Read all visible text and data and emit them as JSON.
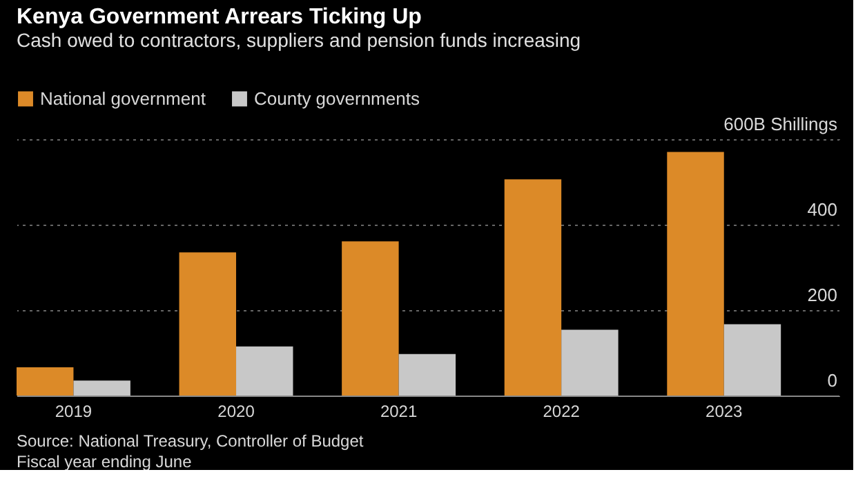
{
  "chart_data": {
    "type": "bar",
    "title": "Kenya Government Arrears Ticking Up",
    "subtitle": "Cash owed to contractors, suppliers and pension funds increasing",
    "categories": [
      "2019",
      "2020",
      "2021",
      "2022",
      "2023"
    ],
    "series": [
      {
        "name": "National government",
        "color": "#dc8a28",
        "values": [
          66,
          335,
          361,
          506,
          570
        ]
      },
      {
        "name": "County governments",
        "color": "#c8c8c8",
        "values": [
          35,
          115,
          97,
          154,
          167
        ]
      }
    ],
    "ylim": [
      0,
      600
    ],
    "yticks": [
      0,
      200,
      400,
      {
        "value": 600,
        "label": "600B Shillings"
      }
    ],
    "grid": "y",
    "legend": "top left",
    "annotations": [
      "Source: National Treasury, Controller of Budget",
      "Fiscal year ending June"
    ]
  }
}
